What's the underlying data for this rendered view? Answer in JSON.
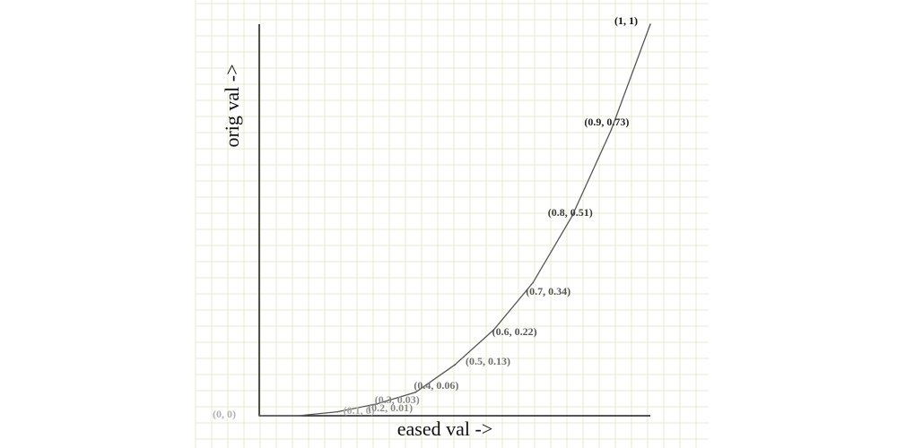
{
  "chart_data": {
    "type": "line",
    "title": "",
    "xlabel": "eased val ->",
    "ylabel": "orig val ->",
    "xlim": [
      0,
      1
    ],
    "ylim": [
      0,
      1
    ],
    "grid": true,
    "legend": "none",
    "colors": {
      "grid": "#e6ecd2",
      "axis": "#1a1a1a",
      "line": "#555555"
    },
    "series": [
      {
        "x": [
          0,
          0.1,
          0.2,
          0.3,
          0.4,
          0.5,
          0.6,
          0.7,
          0.8,
          0.9,
          1
        ],
        "y": [
          0,
          0,
          0.01,
          0.03,
          0.06,
          0.13,
          0.22,
          0.34,
          0.51,
          0.73,
          1
        ]
      }
    ],
    "point_labels": [
      {
        "text": "(0, 0)",
        "x": 0,
        "y": 0,
        "color": "#b0b0b0"
      },
      {
        "text": "(0.1, 0)",
        "x": 0.1,
        "y": 0,
        "color": "#a8a8a8"
      },
      {
        "text": "(0.2, 0.01)",
        "x": 0.2,
        "y": 0.01,
        "color": "#8a8a8a"
      },
      {
        "text": "(0.3, 0.03)",
        "x": 0.3,
        "y": 0.03,
        "color": "#8a8a8a"
      },
      {
        "text": "(0.4, 0.06)",
        "x": 0.4,
        "y": 0.06,
        "color": "#6e6e6e"
      },
      {
        "text": "(0.5, 0.13)",
        "x": 0.5,
        "y": 0.13,
        "color": "#6e6e6e"
      },
      {
        "text": "(0.6, 0.22)",
        "x": 0.6,
        "y": 0.22,
        "color": "#555555"
      },
      {
        "text": "(0.7, 0.34)",
        "x": 0.7,
        "y": 0.34,
        "color": "#555555"
      },
      {
        "text": "(0.8, 0.51)",
        "x": 0.8,
        "y": 0.51,
        "color": "#3a3a3a"
      },
      {
        "text": "(0.9, 0.73)",
        "x": 0.9,
        "y": 0.73,
        "color": "#222222"
      },
      {
        "text": "(1, 1)",
        "x": 1,
        "y": 1,
        "color": "#111111"
      }
    ]
  }
}
